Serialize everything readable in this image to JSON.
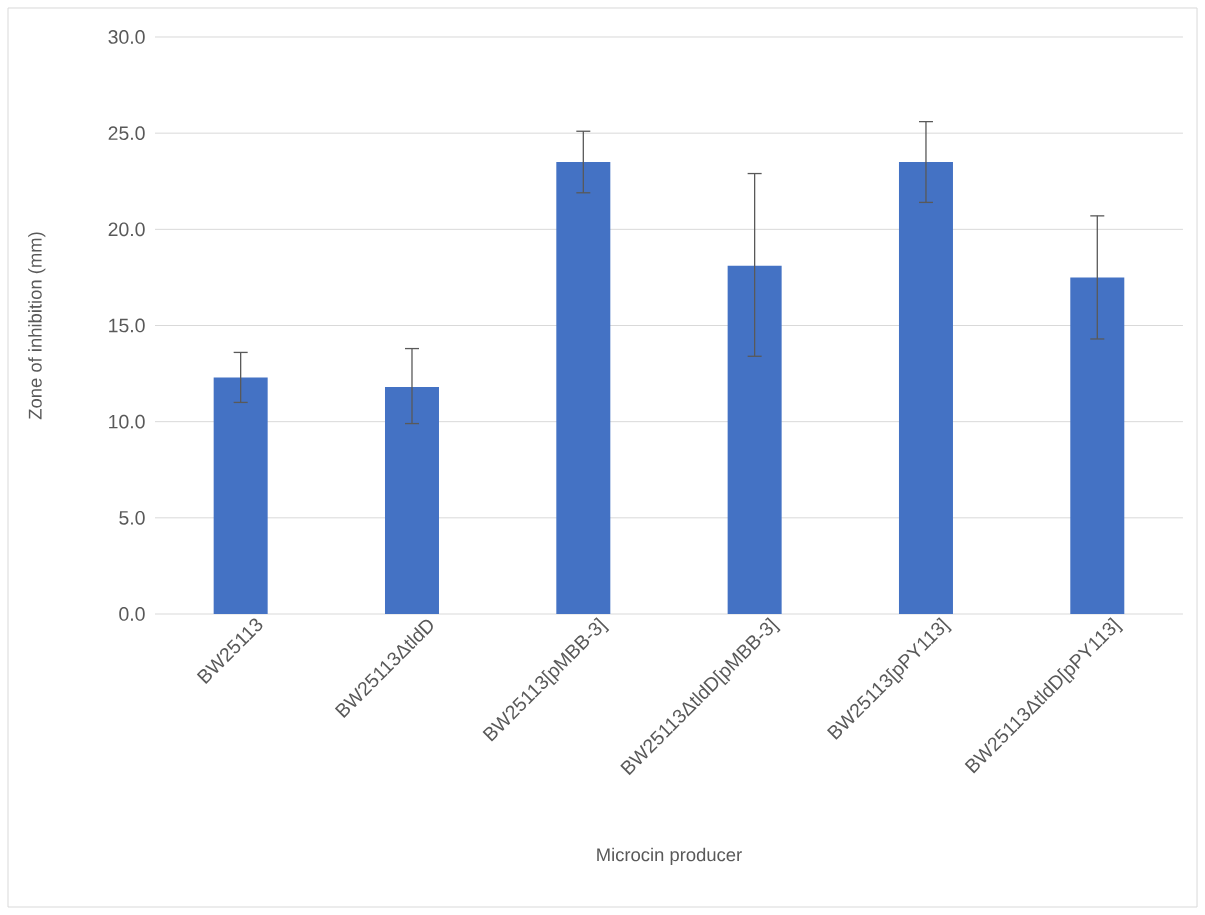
{
  "chart_data": {
    "type": "bar",
    "xlabel": "Microcin producer",
    "ylabel": "Zone of inhibition (mm)",
    "categories": [
      "BW25113",
      "BW25113ΔtldD",
      "BW25113[pMBB-3]",
      "BW25113ΔtldD[pMBB-3]",
      "BW25113[pPY113]",
      "BW25113ΔtldD[pPY113]"
    ],
    "values": [
      12.3,
      11.8,
      23.5,
      18.1,
      23.5,
      17.5
    ],
    "errors": [
      [
        11.0,
        13.6
      ],
      [
        9.9,
        13.8
      ],
      [
        21.9,
        25.1
      ],
      [
        13.4,
        22.9
      ],
      [
        21.4,
        25.6
      ],
      [
        14.3,
        20.7
      ]
    ],
    "color": "#4472c4",
    "ylim": [
      0,
      30
    ],
    "yticks": [
      {
        "value": 0,
        "label": "0.0"
      },
      {
        "value": 5,
        "label": "5.0"
      },
      {
        "value": 10,
        "label": "10.0"
      },
      {
        "value": 15,
        "label": "15.0"
      },
      {
        "value": 20,
        "label": "20.0"
      },
      {
        "value": 25,
        "label": "25.0"
      },
      {
        "value": 30,
        "label": "30.0"
      }
    ],
    "grid": "y"
  }
}
